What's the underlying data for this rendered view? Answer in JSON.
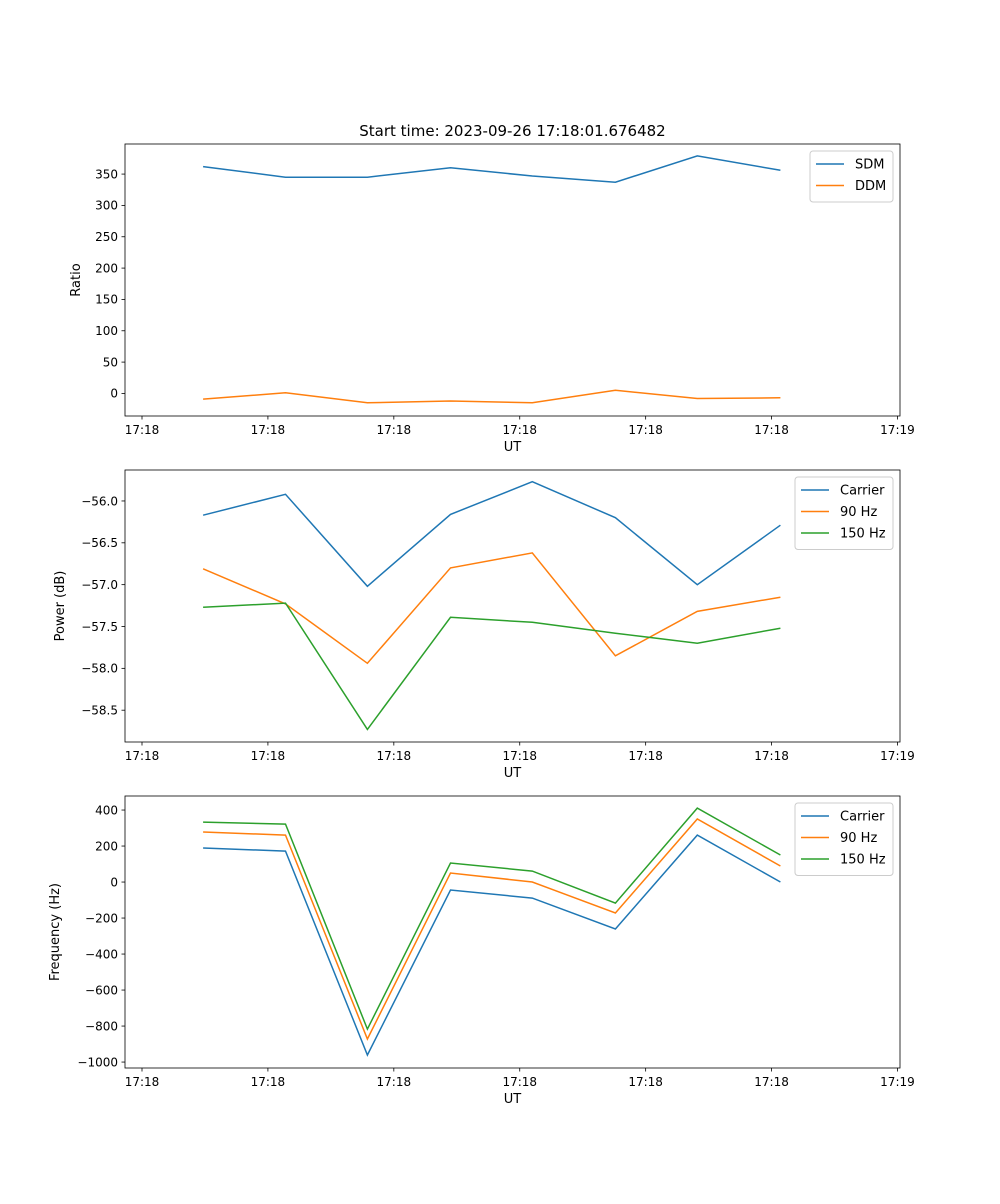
{
  "title": "Start time: 2023-09-26 17:18:01.676482",
  "colors": {
    "c0": "#1f77b4",
    "c1": "#ff7f0e",
    "c2": "#2ca02c"
  },
  "chart_data": [
    {
      "type": "line",
      "xlabel": "UT",
      "ylabel": "Ratio",
      "x_unit": "seconds after 17:18:00",
      "x": [
        4.85,
        11.4,
        17.9,
        24.5,
        31.0,
        37.6,
        44.1,
        50.7
      ],
      "xlim": [
        -1.35,
        60.2
      ],
      "xticks": [
        0,
        10,
        20,
        30,
        40,
        50,
        60
      ],
      "xtick_labels": [
        "17:18",
        "17:18",
        "17:18",
        "17:18",
        "17:18",
        "17:18",
        "17:19"
      ],
      "ylim": [
        -36,
        398
      ],
      "yticks": [
        0,
        50,
        100,
        150,
        200,
        250,
        300,
        350
      ],
      "ytick_labels": [
        "0",
        "50",
        "100",
        "150",
        "200",
        "250",
        "300",
        "350"
      ],
      "legend": "top-right",
      "series": [
        {
          "name": "SDM",
          "values": [
            362,
            345,
            345,
            360,
            347,
            337,
            379,
            356
          ]
        },
        {
          "name": "DDM",
          "values": [
            -9,
            1,
            -15,
            -12,
            -15,
            5,
            -8,
            -7
          ]
        }
      ]
    },
    {
      "type": "line",
      "xlabel": "UT",
      "ylabel": "Power (dB)",
      "x": [
        4.85,
        11.4,
        17.9,
        24.5,
        31.0,
        37.6,
        44.1,
        50.7
      ],
      "xlim": [
        -1.35,
        60.2
      ],
      "xticks": [
        0,
        10,
        20,
        30,
        40,
        50,
        60
      ],
      "xtick_labels": [
        "17:18",
        "17:18",
        "17:18",
        "17:18",
        "17:18",
        "17:18",
        "17:19"
      ],
      "ylim": [
        -58.88,
        -55.63
      ],
      "yticks": [
        -58.5,
        -58.0,
        -57.5,
        -57.0,
        -56.5,
        -56.0
      ],
      "ytick_labels": [
        "−58.5",
        "−58.0",
        "−57.5",
        "−57.0",
        "−56.5",
        "−56.0"
      ],
      "legend": "top-right",
      "series": [
        {
          "name": "Carrier",
          "values": [
            -56.17,
            -55.92,
            -57.02,
            -56.16,
            -55.77,
            -56.2,
            -57.0,
            -56.29
          ]
        },
        {
          "name": "90 Hz",
          "values": [
            -56.81,
            -57.23,
            -57.94,
            -56.8,
            -56.62,
            -57.85,
            -57.32,
            -57.15
          ]
        },
        {
          "name": "150 Hz",
          "values": [
            -57.27,
            -57.22,
            -58.73,
            -57.39,
            -57.45,
            -57.58,
            -57.7,
            -57.52
          ]
        }
      ]
    },
    {
      "type": "line",
      "xlabel": "UT",
      "ylabel": "Frequency (Hz)",
      "x": [
        4.85,
        11.4,
        17.9,
        24.5,
        31.0,
        37.6,
        44.1,
        50.7
      ],
      "xlim": [
        -1.35,
        60.2
      ],
      "xticks": [
        0,
        10,
        20,
        30,
        40,
        50,
        60
      ],
      "xtick_labels": [
        "17:18",
        "17:18",
        "17:18",
        "17:18",
        "17:18",
        "17:18",
        "17:19"
      ],
      "ylim": [
        -1033,
        478
      ],
      "yticks": [
        -1000,
        -800,
        -600,
        -400,
        -200,
        0,
        200,
        400
      ],
      "ytick_labels": [
        "−1000",
        "−800",
        "−600",
        "−400",
        "−200",
        "0",
        "200",
        "400"
      ],
      "legend": "top-right",
      "series": [
        {
          "name": "Carrier",
          "values": [
            189,
            172,
            -961,
            -44,
            -89,
            -261,
            261,
            0
          ]
        },
        {
          "name": "90 Hz",
          "values": [
            278,
            261,
            -872,
            50,
            0,
            -172,
            350,
            89
          ]
        },
        {
          "name": "150 Hz",
          "values": [
            333,
            322,
            -817,
            106,
            61,
            -117,
            411,
            150
          ]
        }
      ]
    }
  ]
}
